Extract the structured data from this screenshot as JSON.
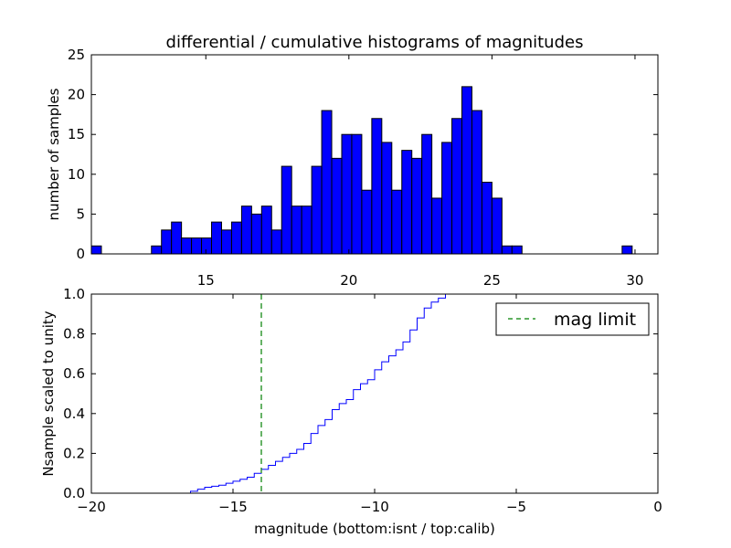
{
  "chart_data": [
    {
      "type": "bar",
      "subtype": "histogram",
      "title": "differential / cumulative histograms of magnitudes",
      "xlabel": "",
      "ylabel": "number of samples",
      "xlim": [
        11.0,
        30.8
      ],
      "ylim": [
        0,
        25
      ],
      "bin_width": 0.35,
      "bin_start": 11.0,
      "counts": [
        1,
        0,
        0,
        0,
        0,
        0,
        1,
        3,
        4,
        2,
        2,
        2,
        4,
        3,
        4,
        6,
        5,
        6,
        3,
        11,
        6,
        6,
        11,
        18,
        12,
        15,
        15,
        8,
        17,
        14,
        8,
        13,
        12,
        15,
        7,
        14,
        17,
        21,
        18,
        9,
        7,
        1,
        1,
        0,
        0,
        0,
        0,
        0,
        0,
        0,
        0,
        0,
        0,
        1
      ],
      "xticks": [
        15,
        20,
        25,
        30
      ],
      "yticks": [
        0,
        5,
        10,
        15,
        20,
        25
      ],
      "color": "#0000ff"
    },
    {
      "type": "line",
      "subtype": "cumulative-step",
      "xlabel": "magnitude (bottom:isnt / top:calib)",
      "ylabel": "Nsample scaled to unity",
      "xlim": [
        -20,
        0
      ],
      "ylim": [
        0.0,
        1.0
      ],
      "xticks": [
        -20,
        -15,
        -10,
        -5,
        0
      ],
      "xtick_labels": [
        "−20",
        "−15",
        "−10",
        "−5",
        "0"
      ],
      "yticks": [
        0.0,
        0.2,
        0.4,
        0.6,
        0.8,
        1.0
      ],
      "ytick_labels": [
        "0.0",
        "0.2",
        "0.4",
        "0.6",
        "0.8",
        "1.0"
      ],
      "series": [
        {
          "name": "cumulative fraction",
          "color": "#0000ff",
          "x": [
            -18.0,
            -16.5,
            -16.25,
            -16.0,
            -15.75,
            -15.5,
            -15.25,
            -15.0,
            -14.75,
            -14.5,
            -14.25,
            -14.0,
            -13.75,
            -13.5,
            -13.25,
            -13.0,
            -12.75,
            -12.5,
            -12.25,
            -12.0,
            -11.75,
            -11.5,
            -11.25,
            -11.0,
            -10.75,
            -10.5,
            -10.25,
            -10.0,
            -9.75,
            -9.5,
            -9.25,
            -9.0,
            -8.75,
            -8.5,
            -8.25,
            -8.0,
            -7.75,
            -7.5,
            0.0
          ],
          "y": [
            0.0,
            0.01,
            0.02,
            0.03,
            0.035,
            0.04,
            0.05,
            0.06,
            0.07,
            0.08,
            0.1,
            0.12,
            0.14,
            0.16,
            0.18,
            0.2,
            0.22,
            0.25,
            0.3,
            0.34,
            0.37,
            0.42,
            0.45,
            0.47,
            0.52,
            0.55,
            0.57,
            0.62,
            0.66,
            0.69,
            0.72,
            0.76,
            0.82,
            0.88,
            0.93,
            0.96,
            0.98,
            1.0,
            1.0
          ]
        }
      ],
      "vlines": [
        {
          "name": "mag limit",
          "x": -14.0,
          "color": "#008000",
          "style": "dashed"
        }
      ],
      "legend": {
        "position": "top-right",
        "entries": [
          "mag limit"
        ]
      }
    }
  ]
}
